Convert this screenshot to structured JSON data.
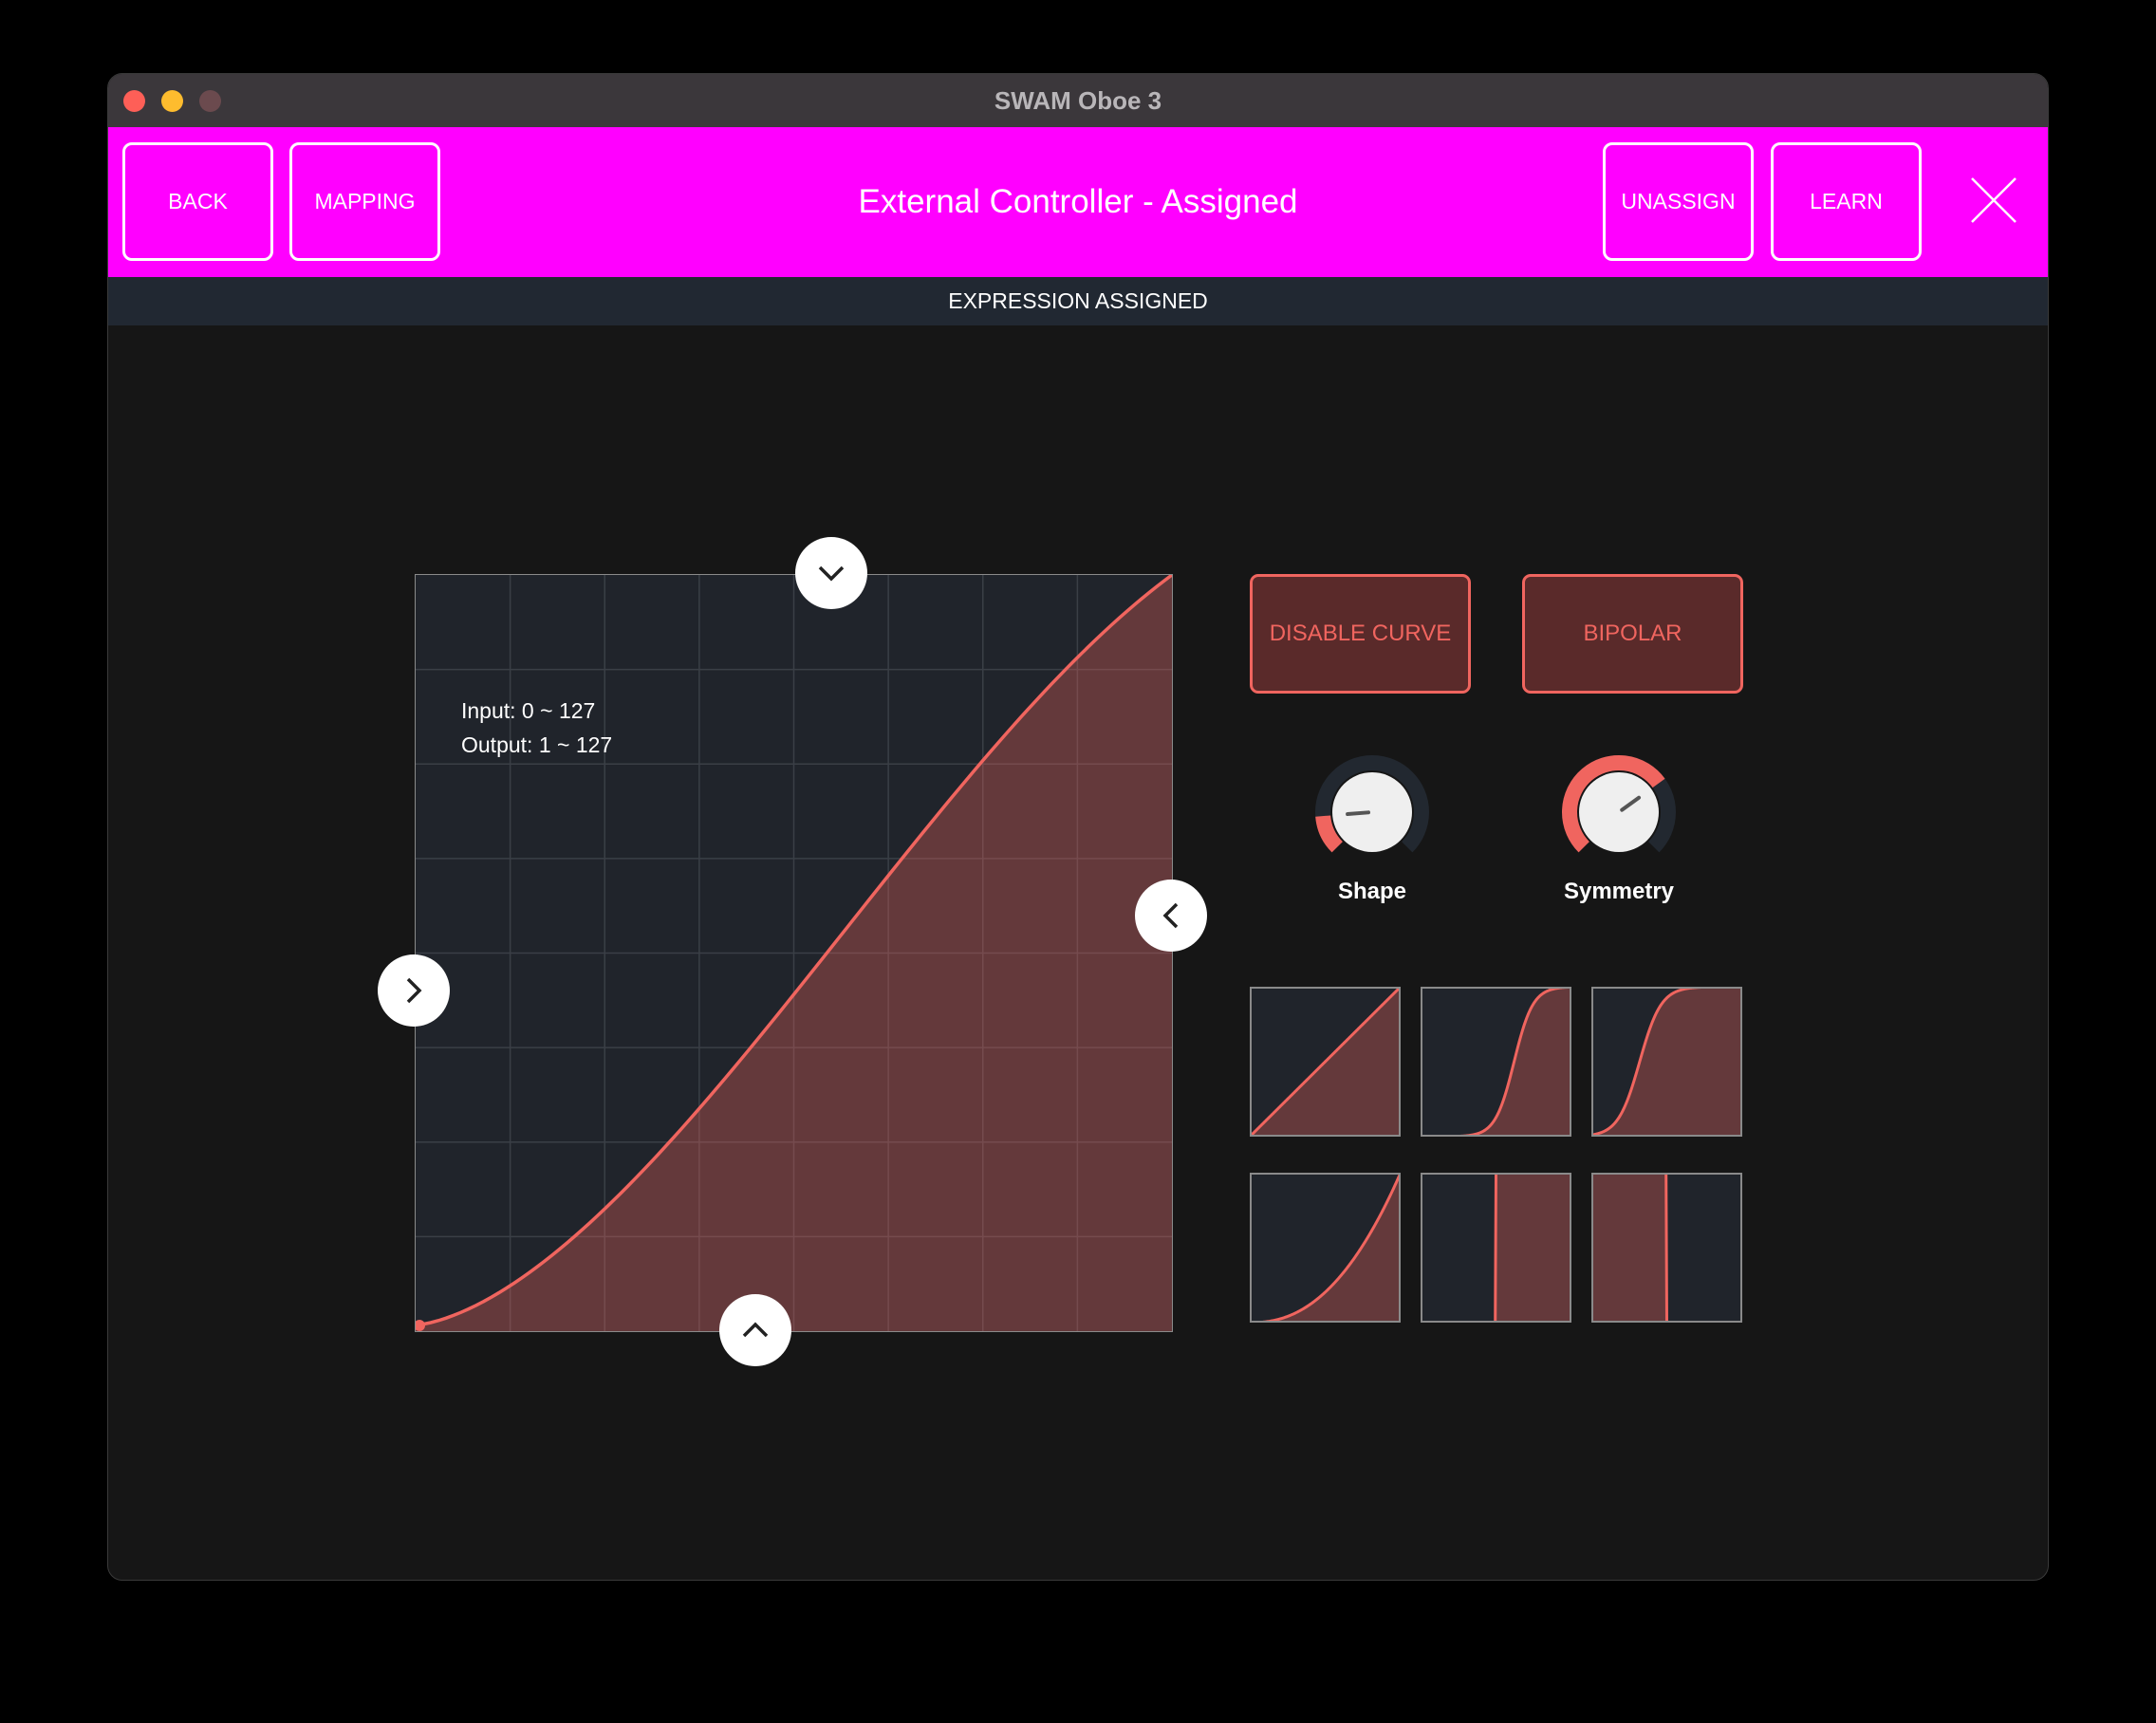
{
  "window": {
    "title": "SWAM Oboe 3"
  },
  "header": {
    "title": "External Controller - Assigned",
    "back_label": "BACK",
    "mapping_label": "MAPPING",
    "unassign_label": "UNASSIGN",
    "learn_label": "LEARN",
    "close_icon": "x-icon",
    "background_color": "#ff00ff"
  },
  "status": {
    "text": "EXPRESSION ASSIGNED"
  },
  "curve_editor": {
    "input_range": "Input: 0 ~ 127",
    "output_range": "Output: 1 ~ 127",
    "accent_color": "#f0655f",
    "handles": [
      "chevron-down-icon",
      "chevron-up-icon",
      "chevron-right-icon",
      "chevron-left-icon"
    ]
  },
  "controls": {
    "disable_curve_label": "DISABLE CURVE",
    "bipolar_label": "BIPOLAR",
    "knobs": [
      {
        "label": "Shape",
        "value": 0.15
      },
      {
        "label": "Symmetry",
        "value": 0.7
      }
    ]
  },
  "presets": [
    "linear",
    "steep-s-curve",
    "early-s-curve",
    "exponential",
    "step-up",
    "step-down"
  ]
}
